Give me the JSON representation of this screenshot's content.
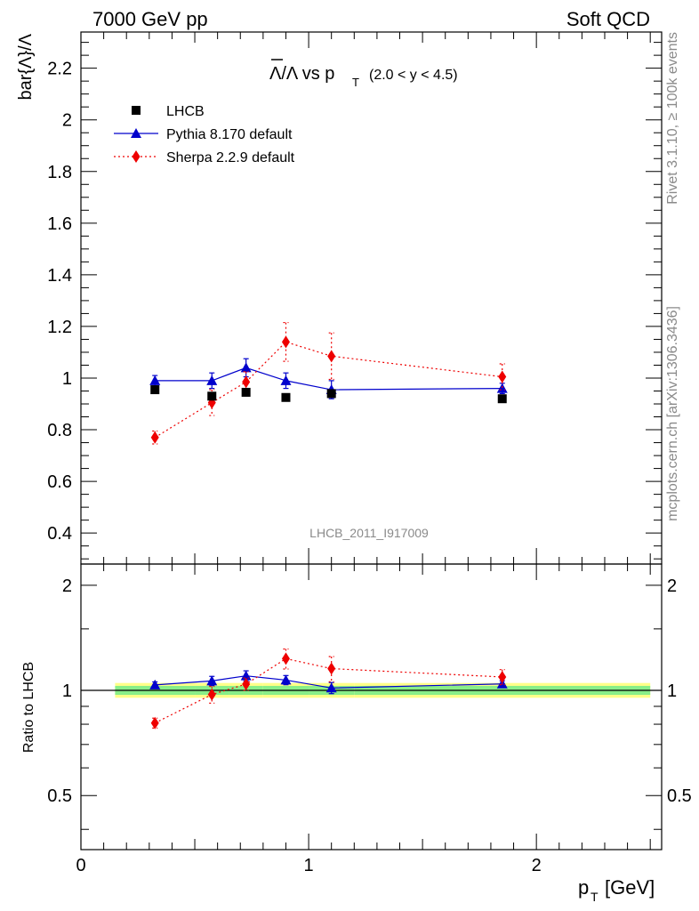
{
  "header": {
    "left": "7000 GeV pp",
    "right": "Soft QCD"
  },
  "side": {
    "rivet": "Rivet 3.1.10, ≥ 100k events",
    "mcplots": "mcplots.cern.ch [arXiv:1306.3436]"
  },
  "chart_data": {
    "type": "scatter",
    "title_main": "Λ/Λ vs p",
    "title_sub": "T",
    "title_range": "(2.0 < y < 4.5)",
    "analysis_tag": "LHCB_2011_I917009",
    "xlabel": "p",
    "xlabel_sub": "T",
    "xlabel_unit": "[GeV]",
    "ylabel": "bar{Λ}/Λ",
    "ratio_ylabel": "Ratio to LHCB",
    "xlim": [
      0,
      2.55
    ],
    "ylim": [
      0.28,
      2.34
    ],
    "ratio_ylim": [
      0.35,
      2.3
    ],
    "x_ticks": [
      "0",
      "1",
      "2"
    ],
    "y_ticks": [
      "0.4",
      "0.6",
      "0.8",
      "1",
      "1.2",
      "1.4",
      "1.6",
      "1.8",
      "2",
      "2.2"
    ],
    "ratio_ticks": [
      "0.5",
      "1",
      "2"
    ],
    "x": [
      0.325,
      0.575,
      0.725,
      0.9,
      1.1,
      1.85
    ],
    "x_bins": [
      [
        0.15,
        0.5
      ],
      [
        0.5,
        0.65
      ],
      [
        0.65,
        0.8
      ],
      [
        0.8,
        1.0
      ],
      [
        1.0,
        1.2
      ],
      [
        1.2,
        2.5
      ]
    ],
    "series": [
      {
        "name": "LHCB",
        "marker": "square",
        "color": "#000000",
        "values": [
          0.955,
          0.93,
          0.945,
          0.925,
          0.94,
          0.92
        ],
        "errors": [
          0.01,
          0.01,
          0.01,
          0.01,
          0.01,
          0.01
        ]
      },
      {
        "name": "Pythia 8.170 default",
        "marker": "triangle",
        "color": "#0000cc",
        "line": "solid",
        "values": [
          0.99,
          0.99,
          1.04,
          0.99,
          0.955,
          0.96
        ],
        "errors": [
          0.02,
          0.03,
          0.035,
          0.03,
          0.035,
          0.02
        ]
      },
      {
        "name": "Sherpa 2.2.9 default",
        "marker": "diamond",
        "color": "#ee0000",
        "line": "dotted",
        "values": [
          0.77,
          0.905,
          0.985,
          1.14,
          1.085,
          1.005
        ],
        "errors": [
          0.025,
          0.05,
          0.04,
          0.075,
          0.09,
          0.05
        ]
      }
    ],
    "ratio_band": {
      "color_inner": "#88ee88",
      "color_outer": "#ffff88"
    }
  }
}
